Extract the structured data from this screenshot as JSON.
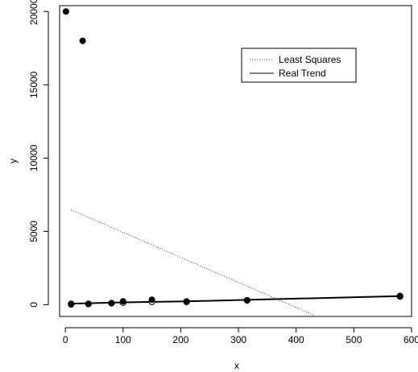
{
  "chart_data": {
    "type": "scatter",
    "title": "",
    "xlabel": "x",
    "ylabel": "y",
    "xlim": [
      -10,
      600
    ],
    "ylim": [
      -800,
      20400
    ],
    "x_ticks": [
      0,
      100,
      200,
      300,
      400,
      500,
      600
    ],
    "x_tick_labels": [
      "0",
      "100",
      "200",
      "300",
      "400",
      "500",
      "600"
    ],
    "y_ticks": [
      0,
      5000,
      10000,
      15000,
      20000
    ],
    "y_tick_labels": [
      "0",
      "5000",
      "10000",
      "15000",
      "20000"
    ],
    "grid": false,
    "legend": {
      "position": "top-right",
      "entries": [
        {
          "label": "Least Squares",
          "line_style": "dotted"
        },
        {
          "label": "Real Trend",
          "line_style": "solid"
        }
      ]
    },
    "points_filled": [
      {
        "x": 1,
        "y": 20000
      },
      {
        "x": 30,
        "y": 18000
      },
      {
        "x": 10,
        "y": 20
      },
      {
        "x": 40,
        "y": 50
      },
      {
        "x": 80,
        "y": 110
      },
      {
        "x": 100,
        "y": 230
      },
      {
        "x": 150,
        "y": 340
      },
      {
        "x": 210,
        "y": 190
      },
      {
        "x": 315,
        "y": 300
      },
      {
        "x": 580,
        "y": 600
      }
    ],
    "points_open": [
      {
        "x": 10,
        "y": 60
      },
      {
        "x": 40,
        "y": 60
      },
      {
        "x": 80,
        "y": 100
      },
      {
        "x": 100,
        "y": 140
      },
      {
        "x": 150,
        "y": 200
      },
      {
        "x": 210,
        "y": 220
      },
      {
        "x": 315,
        "y": 300
      },
      {
        "x": 580,
        "y": 560
      }
    ],
    "series": [
      {
        "name": "Least Squares",
        "style": "dotted",
        "x": [
          10,
          430
        ],
        "y": [
          6470,
          -700
        ]
      },
      {
        "name": "Real Trend",
        "style": "solid",
        "x": [
          10,
          100,
          210,
          315,
          580
        ],
        "y": [
          70,
          160,
          230,
          330,
          590
        ]
      }
    ]
  }
}
